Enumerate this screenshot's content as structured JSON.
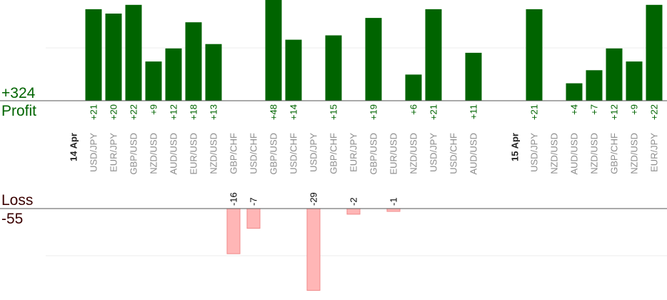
{
  "summary": {
    "profit_total": "+324",
    "profit_label": "Profit",
    "loss_label": "Loss",
    "loss_total": "-55"
  },
  "chart_data": {
    "type": "bar",
    "colors": {
      "profit": "#006400",
      "loss": "#ffb6b6",
      "loss_border": "#f08a8a",
      "pair_label": "#8c8c8c",
      "value_profit": "#006400",
      "value_loss": "#000000"
    },
    "day_labels": [
      {
        "text": "14 Apr",
        "before_index": 0
      },
      {
        "text": "15 Apr",
        "before_index": 22
      }
    ],
    "bars": [
      {
        "pair": "USD/JPY",
        "value": 21
      },
      {
        "pair": "EUR/JPY",
        "value": 20
      },
      {
        "pair": "GBP/USD",
        "value": 22
      },
      {
        "pair": "NZD/USD",
        "value": 9
      },
      {
        "pair": "AUD/USD",
        "value": 12
      },
      {
        "pair": "EUR/USD",
        "value": 18
      },
      {
        "pair": "NZD/USD",
        "value": 13
      },
      {
        "pair": "GBP/CHF",
        "value": -16
      },
      {
        "pair": "USD/CHF",
        "value": -7
      },
      {
        "pair": "GBP/USD",
        "value": 48
      },
      {
        "pair": "USD/CHF",
        "value": 14
      },
      {
        "pair": "USD/JPY",
        "value": -29
      },
      {
        "pair": "GBP/CHF",
        "value": 15
      },
      {
        "pair": "EUR/JPY",
        "value": -2
      },
      {
        "pair": "GBP/USD",
        "value": 19
      },
      {
        "pair": "EUR/USD",
        "value": -1
      },
      {
        "pair": "NZD/USD",
        "value": 6
      },
      {
        "pair": "USD/JPY",
        "value": 21
      },
      {
        "pair": "USD/CHF",
        "value": null
      },
      {
        "pair": "AUD/USD",
        "value": 11
      },
      {
        "pair": "USD/JPY",
        "value": 21
      },
      {
        "pair": "NZD/USD",
        "value": null
      },
      {
        "pair": "AUD/USD",
        "value": 4
      },
      {
        "pair": "NZD/USD",
        "value": 7
      },
      {
        "pair": "GBP/CHF",
        "value": 12
      },
      {
        "pair": "NZD/USD",
        "value": 9
      },
      {
        "pair": "EUR/JPY",
        "value": 22
      }
    ],
    "bar_slots": [
      131,
      159,
      187,
      215,
      243,
      271,
      299,
      327,
      355,
      383,
      411,
      439,
      467,
      495,
      523,
      551,
      579,
      607,
      635,
      663,
      748,
      776,
      804,
      832,
      860,
      888,
      916
    ],
    "label_slots": [
      131,
      159,
      187,
      215,
      243,
      271,
      299,
      327,
      355,
      383,
      411,
      439,
      467,
      495,
      523,
      551,
      579,
      607,
      635,
      663,
      748,
      776,
      804,
      832,
      860,
      888,
      916
    ]
  }
}
